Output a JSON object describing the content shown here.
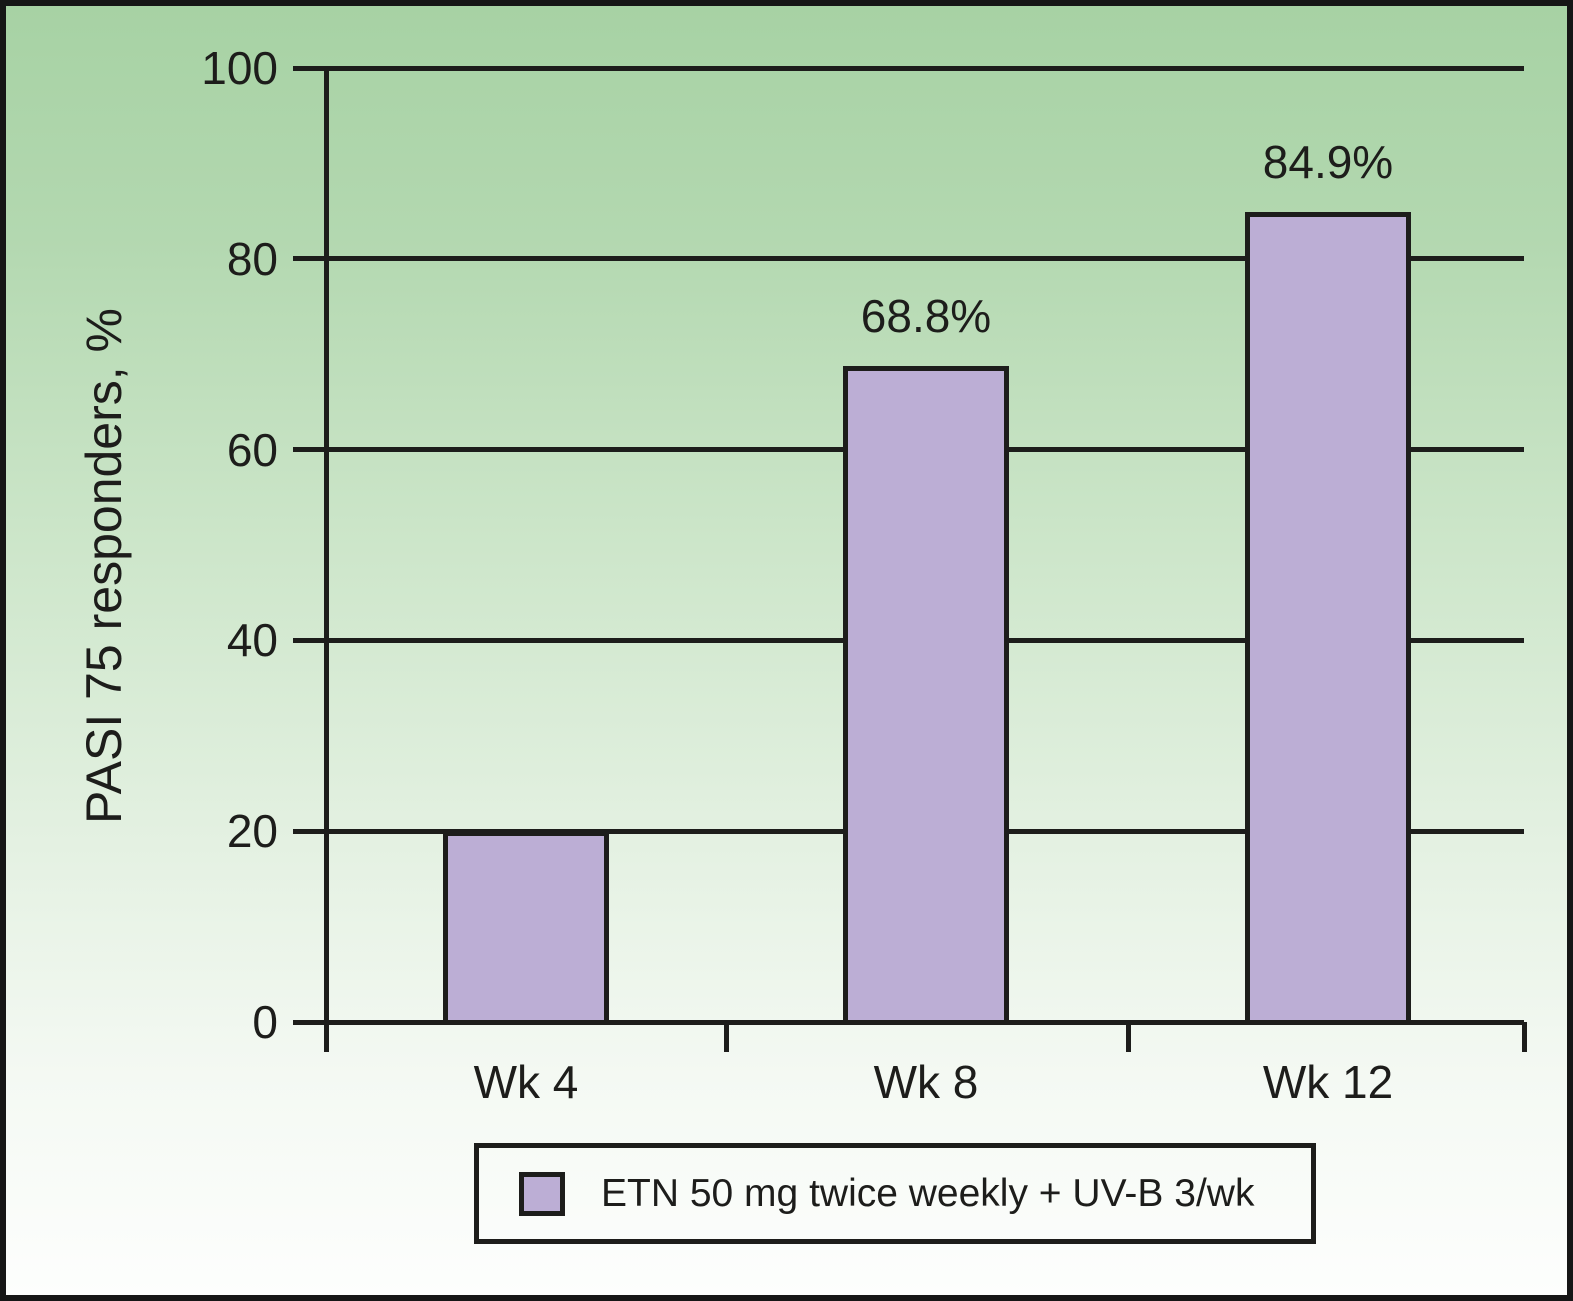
{
  "figure": {
    "frame_color": "#161616",
    "background_top_color": "#a7d2a4",
    "background_bottom_color": "#fdfefd",
    "ink_color": "#1d1d1b"
  },
  "chart_data": {
    "type": "bar",
    "title": "",
    "xlabel": "",
    "ylabel": "PASI 75 responders, %",
    "ylim": [
      0,
      100
    ],
    "yticks": [
      0,
      20,
      40,
      60,
      80,
      100
    ],
    "grid": true,
    "categories": [
      "Wk 4",
      "Wk 8",
      "Wk 12"
    ],
    "series": [
      {
        "name": "ETN 50 mg twice weekly + UV-B 3/wk",
        "values": [
          20,
          68.8,
          84.9
        ],
        "data_labels": [
          "",
          "68.8%",
          "84.9%"
        ],
        "color": "#bcaed5"
      }
    ],
    "legend_position": "bottom"
  },
  "legend": {
    "label": "ETN 50 mg twice weekly + UV-B 3/wk",
    "swatch_color": "#bcaed5"
  }
}
